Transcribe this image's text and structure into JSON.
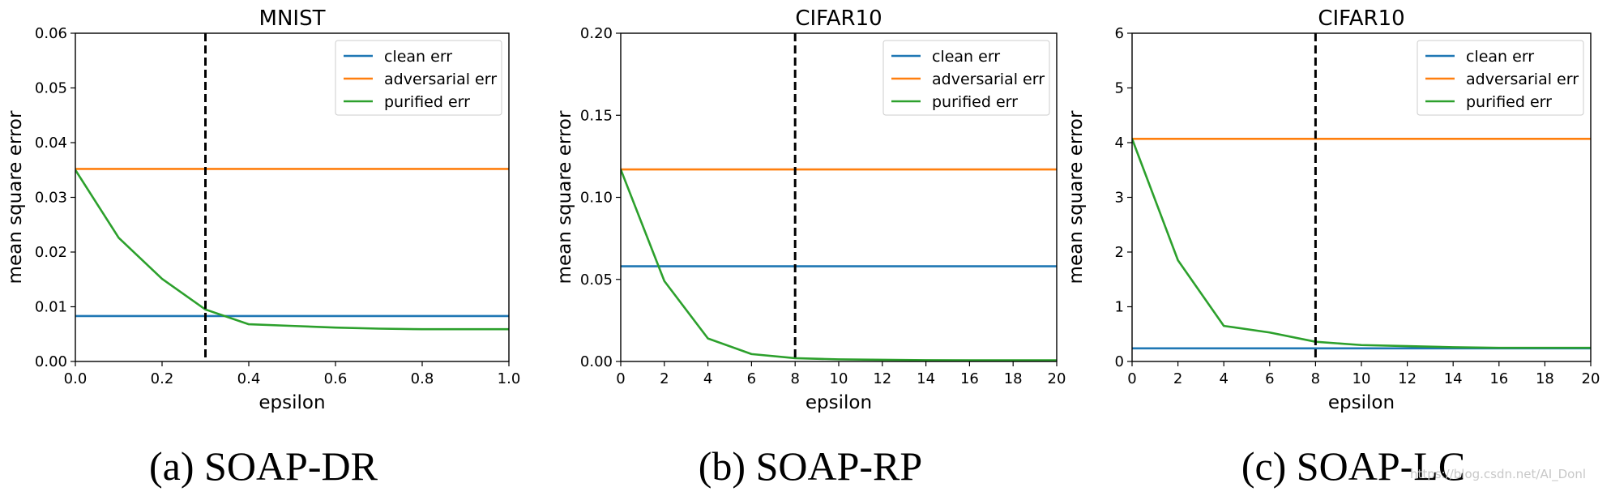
{
  "chart_data": [
    {
      "type": "line",
      "title": "MNIST",
      "xlabel": "epsilon",
      "ylabel": "mean square error",
      "xlim": [
        0,
        1.0
      ],
      "ylim": [
        0,
        0.06
      ],
      "xticks": [
        "0.0",
        "0.2",
        "0.4",
        "0.6",
        "0.8",
        "1.0"
      ],
      "xtick_values": [
        0,
        0.2,
        0.4,
        0.6,
        0.8,
        1.0
      ],
      "yticks": [
        "0.00",
        "0.01",
        "0.02",
        "0.03",
        "0.04",
        "0.05",
        "0.06"
      ],
      "ytick_values": [
        0,
        0.01,
        0.02,
        0.03,
        0.04,
        0.05,
        0.06
      ],
      "vline": 0.3,
      "legend_position": "top-right",
      "series": [
        {
          "name": "clean err",
          "color": "#1f77b4",
          "x": [
            0,
            1.0
          ],
          "y": [
            0.0083,
            0.0083
          ]
        },
        {
          "name": "adversarial err",
          "color": "#ff7f0e",
          "x": [
            0,
            1.0
          ],
          "y": [
            0.0352,
            0.0352
          ]
        },
        {
          "name": "purified err",
          "color": "#2ca02c",
          "x": [
            0,
            0.1,
            0.2,
            0.3,
            0.4,
            0.5,
            0.6,
            0.7,
            0.8,
            0.9,
            1.0
          ],
          "y": [
            0.035,
            0.0226,
            0.0151,
            0.0095,
            0.0068,
            0.0065,
            0.0062,
            0.006,
            0.0059,
            0.0059,
            0.0059
          ]
        }
      ],
      "caption": "(a) SOAP-DR"
    },
    {
      "type": "line",
      "title": "CIFAR10",
      "xlabel": "epsilon",
      "ylabel": "mean square error",
      "xlim": [
        0,
        20
      ],
      "ylim": [
        0,
        0.2
      ],
      "xticks": [
        "0",
        "2",
        "4",
        "6",
        "8",
        "10",
        "12",
        "14",
        "16",
        "18",
        "20"
      ],
      "xtick_values": [
        0,
        2,
        4,
        6,
        8,
        10,
        12,
        14,
        16,
        18,
        20
      ],
      "yticks": [
        "0.00",
        "0.05",
        "0.10",
        "0.15",
        "0.20"
      ],
      "ytick_values": [
        0,
        0.05,
        0.1,
        0.15,
        0.2
      ],
      "vline": 8,
      "legend_position": "top-right",
      "series": [
        {
          "name": "clean err",
          "color": "#1f77b4",
          "x": [
            0,
            20
          ],
          "y": [
            0.058,
            0.058
          ]
        },
        {
          "name": "adversarial err",
          "color": "#ff7f0e",
          "x": [
            0,
            20
          ],
          "y": [
            0.117,
            0.117
          ]
        },
        {
          "name": "purified err",
          "color": "#2ca02c",
          "x": [
            0,
            2,
            4,
            6,
            8,
            10,
            12,
            14,
            16,
            18,
            20
          ],
          "y": [
            0.117,
            0.049,
            0.014,
            0.0045,
            0.002,
            0.0013,
            0.001,
            0.0008,
            0.0007,
            0.0007,
            0.0007
          ]
        }
      ],
      "caption": "(b) SOAP-RP"
    },
    {
      "type": "line",
      "title": "CIFAR10",
      "xlabel": "epsilon",
      "ylabel": "mean square error",
      "xlim": [
        0,
        20
      ],
      "ylim": [
        0,
        6
      ],
      "xticks": [
        "0",
        "2",
        "4",
        "6",
        "8",
        "10",
        "12",
        "14",
        "16",
        "18",
        "20"
      ],
      "xtick_values": [
        0,
        2,
        4,
        6,
        8,
        10,
        12,
        14,
        16,
        18,
        20
      ],
      "yticks": [
        "0",
        "1",
        "2",
        "3",
        "4",
        "5",
        "6"
      ],
      "ytick_values": [
        0,
        1,
        2,
        3,
        4,
        5,
        6
      ],
      "vline": 8,
      "legend_position": "top-right",
      "series": [
        {
          "name": "clean err",
          "color": "#1f77b4",
          "x": [
            0,
            20
          ],
          "y": [
            0.24,
            0.24
          ]
        },
        {
          "name": "adversarial err",
          "color": "#ff7f0e",
          "x": [
            0,
            20
          ],
          "y": [
            4.07,
            4.07
          ]
        },
        {
          "name": "purified err",
          "color": "#2ca02c",
          "x": [
            0,
            2,
            4,
            6,
            8,
            10,
            12,
            14,
            16,
            18,
            20
          ],
          "y": [
            4.07,
            1.85,
            0.65,
            0.53,
            0.36,
            0.3,
            0.28,
            0.26,
            0.25,
            0.25,
            0.25
          ]
        }
      ],
      "caption": "(c) SOAP-LC"
    }
  ],
  "watermark": "https://blog.csdn.net/AI_Donl"
}
